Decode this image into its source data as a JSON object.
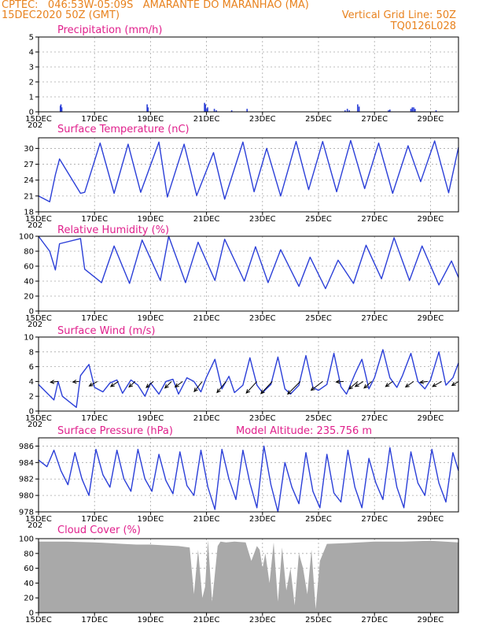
{
  "header": {
    "line1_left": "CPTEC:   046:53W-05:09S   AMARANTE DO MARANHAO (MA)",
    "line2_left": "15DEC2020 50Z (GMT)",
    "line2_right": "Vertical Grid Line: 50Z",
    "line3_right": "TQ0126L028"
  },
  "colors": {
    "header": "#e8821e",
    "title": "#e0208c",
    "series": "#2b3fd8",
    "cloud": "#a9a9a9",
    "wind_arrow": "#000000"
  },
  "x_axis": {
    "tick_labels": [
      "15DEC",
      "17DEC",
      "19DEC",
      "21DEC",
      "23DEC",
      "25DEC",
      "27DEC",
      "29DEC"
    ],
    "tick_days": [
      0,
      2,
      4,
      6,
      8,
      10,
      12,
      14
    ],
    "range_days": [
      0,
      15
    ],
    "sub_label": "202"
  },
  "chart_data": [
    {
      "type": "bar",
      "title": "Precipitation (mm/h)",
      "ylim": [
        0,
        5
      ],
      "yticks": [
        0,
        1,
        2,
        3,
        4,
        5
      ],
      "x_day": [
        0.78,
        0.8,
        0.83,
        3.88,
        3.91,
        5.93,
        5.96,
        6.01,
        6.04,
        6.28,
        6.35,
        6.9,
        7.45,
        10.95,
        11.03,
        11.1,
        11.4,
        11.45,
        12.5,
        12.55,
        13.3,
        13.35,
        13.4,
        13.45,
        14.2
      ],
      "values": [
        0.4,
        0.5,
        0.3,
        0.5,
        0.3,
        0.6,
        0.5,
        0.2,
        0.3,
        0.2,
        0.1,
        0.1,
        0.2,
        0.1,
        0.2,
        0.1,
        0.5,
        0.35,
        0.1,
        0.15,
        0.2,
        0.3,
        0.3,
        0.2,
        0.1
      ]
    },
    {
      "type": "line",
      "title": "Surface Temperature (nC)",
      "ylim": [
        18,
        32
      ],
      "yticks": [
        18,
        21,
        24,
        27,
        30
      ],
      "x_day": [
        0,
        0.4,
        0.6,
        0.75,
        1.5,
        1.65,
        2.2,
        2.7,
        3.2,
        3.65,
        4.3,
        4.6,
        5.2,
        5.65,
        6.25,
        6.65,
        7.3,
        7.7,
        8.15,
        8.65,
        9.2,
        9.65,
        10.15,
        10.65,
        11.15,
        11.65,
        12.15,
        12.65,
        13.2,
        13.65,
        14.15,
        14.65,
        15.0
      ],
      "values": [
        21.0,
        19.9,
        25.0,
        28.0,
        21.5,
        21.7,
        31.0,
        21.5,
        30.8,
        21.7,
        31.2,
        20.8,
        30.8,
        21.1,
        29.2,
        20.4,
        31.2,
        21.8,
        30.0,
        21.0,
        31.3,
        22.2,
        31.3,
        21.8,
        31.5,
        22.4,
        31.0,
        21.5,
        30.5,
        23.7,
        31.4,
        21.6,
        30.2
      ]
    },
    {
      "type": "line",
      "title": "Relative Humidity (%)",
      "ylim": [
        0,
        100
      ],
      "yticks": [
        0,
        20,
        40,
        60,
        80,
        100
      ],
      "x_day": [
        0,
        0.4,
        0.6,
        0.75,
        1.5,
        1.65,
        2.25,
        2.7,
        3.25,
        3.7,
        4.35,
        4.65,
        5.25,
        5.7,
        6.3,
        6.65,
        7.35,
        7.75,
        8.2,
        8.65,
        9.3,
        9.7,
        10.25,
        10.7,
        11.25,
        11.7,
        12.25,
        12.7,
        13.25,
        13.7,
        14.3,
        14.75,
        15.0
      ],
      "values": [
        100,
        80,
        55,
        90,
        97,
        56,
        38,
        87,
        37,
        95,
        41,
        100,
        38,
        92,
        41,
        96,
        40,
        86,
        38,
        82,
        33,
        72,
        30,
        68,
        37,
        88,
        43,
        98,
        41,
        87,
        35,
        67,
        45
      ]
    },
    {
      "type": "line",
      "title": "Surface Wind (m/s)",
      "ylim": [
        0,
        10
      ],
      "yticks": [
        0,
        2,
        4,
        6,
        8,
        10
      ],
      "x_day": [
        0,
        0.55,
        0.7,
        0.85,
        1.35,
        1.5,
        1.8,
        2.0,
        2.3,
        2.55,
        2.8,
        3.0,
        3.3,
        3.55,
        3.8,
        4.0,
        4.3,
        4.55,
        4.8,
        5.0,
        5.3,
        5.55,
        5.8,
        6.0,
        6.3,
        6.55,
        6.8,
        7.0,
        7.3,
        7.55,
        7.8,
        8.0,
        8.3,
        8.55,
        8.8,
        9.0,
        9.3,
        9.55,
        9.8,
        10.0,
        10.3,
        10.55,
        10.8,
        11.0,
        11.3,
        11.55,
        11.8,
        12.0,
        12.3,
        12.55,
        12.8,
        13.0,
        13.3,
        13.55,
        13.8,
        14.0,
        14.3,
        14.55,
        14.8,
        15.0
      ],
      "values": [
        3.6,
        1.5,
        4.0,
        2.0,
        0.5,
        4.8,
        6.3,
        3.2,
        2.6,
        3.8,
        4.2,
        2.4,
        4.2,
        3.5,
        2.0,
        3.8,
        2.3,
        4.0,
        4.3,
        2.3,
        4.5,
        4.0,
        2.6,
        4.6,
        7.0,
        3.0,
        4.7,
        2.5,
        3.5,
        7.2,
        3.5,
        2.5,
        3.6,
        7.3,
        3.0,
        2.3,
        3.5,
        7.5,
        3.2,
        2.8,
        3.6,
        7.8,
        3.3,
        2.3,
        5.0,
        7.0,
        3.0,
        4.5,
        8.3,
        4.5,
        3.2,
        4.8,
        7.8,
        4.0,
        3.0,
        4.2,
        8.0,
        3.5,
        4.5,
        6.5
      ]
    },
    {
      "type": "line",
      "title": "Surface Pressure (hPa)",
      "annotation": "Model Altitude: 235.756  m",
      "ylim": [
        978,
        987
      ],
      "yticks": [
        978,
        980,
        982,
        984,
        986
      ],
      "x_day": [
        0,
        0.3,
        0.55,
        0.8,
        1.05,
        1.3,
        1.55,
        1.8,
        2.05,
        2.3,
        2.55,
        2.8,
        3.05,
        3.3,
        3.55,
        3.8,
        4.05,
        4.3,
        4.55,
        4.8,
        5.05,
        5.3,
        5.55,
        5.8,
        6.05,
        6.3,
        6.55,
        6.8,
        7.05,
        7.3,
        7.55,
        7.8,
        8.05,
        8.3,
        8.55,
        8.8,
        9.05,
        9.3,
        9.55,
        9.8,
        10.05,
        10.3,
        10.55,
        10.8,
        11.05,
        11.3,
        11.55,
        11.8,
        12.05,
        12.3,
        12.55,
        12.8,
        13.05,
        13.3,
        13.55,
        13.8,
        14.05,
        14.3,
        14.55,
        14.8,
        15.0
      ],
      "values": [
        984.3,
        983.5,
        985.5,
        983.0,
        981.3,
        985.2,
        982.0,
        980.0,
        985.6,
        982.5,
        981.0,
        985.5,
        982.0,
        980.5,
        985.6,
        982.0,
        980.5,
        985.0,
        981.8,
        980.2,
        985.3,
        981.2,
        980.0,
        985.5,
        981.0,
        978.3,
        985.6,
        982.0,
        979.5,
        985.5,
        981.5,
        978.5,
        986.0,
        981.3,
        978.0,
        984.0,
        981.0,
        979.0,
        985.2,
        980.5,
        978.5,
        985.0,
        980.3,
        979.2,
        985.5,
        981.0,
        978.5,
        984.5,
        981.5,
        979.5,
        985.8,
        981.0,
        978.5,
        985.3,
        981.5,
        980.0,
        985.6,
        981.5,
        979.2,
        985.2,
        983.0
      ]
    },
    {
      "type": "area",
      "title": "Cloud Cover (%)",
      "ylim": [
        0,
        100
      ],
      "yticks": [
        0,
        20,
        40,
        60,
        80,
        100
      ],
      "x_day": [
        0,
        1.0,
        2.0,
        2.5,
        3.0,
        3.5,
        4.0,
        4.5,
        5.0,
        5.4,
        5.55,
        5.7,
        5.85,
        5.95,
        6.05,
        6.2,
        6.4,
        6.5,
        6.7,
        7.0,
        7.4,
        7.6,
        7.8,
        7.9,
        8.0,
        8.1,
        8.25,
        8.4,
        8.55,
        8.7,
        8.85,
        9.0,
        9.15,
        9.3,
        9.45,
        9.6,
        9.75,
        9.9,
        10.05,
        10.3,
        11.0,
        12.0,
        13.0,
        14.0,
        15.0
      ],
      "values": [
        96,
        96,
        95,
        94,
        93,
        92,
        92,
        91,
        90,
        88,
        25,
        85,
        20,
        35,
        98,
        15,
        90,
        96,
        95,
        96,
        95,
        70,
        90,
        85,
        60,
        80,
        40,
        95,
        15,
        88,
        30,
        60,
        10,
        80,
        60,
        25,
        85,
        5,
        70,
        93,
        94,
        96,
        96,
        97,
        95
      ]
    }
  ],
  "wind_vectors": {
    "x_day": [
      0.7,
      1.45,
      2.1,
      2.85,
      3.45,
      4.1,
      4.75,
      5.15,
      5.85,
      6.7,
      7.8,
      8.35,
      9.35,
      10.15,
      10.9,
      11.4,
      11.6,
      11.9,
      12.65,
      13.4,
      13.9,
      14.4,
      15.0
    ],
    "u": [
      -3.0,
      -2.5,
      -3.2,
      -3.0,
      -2.4,
      -2.8,
      -2.6,
      -3.0,
      -3.2,
      -3.6,
      -4.2,
      -4.5,
      -5.0,
      -4.6,
      -3.0,
      -3.4,
      -3.2,
      -3.0,
      -2.8,
      -3.2,
      -3.0,
      -3.6,
      -2.6
    ],
    "v": [
      -0.3,
      -0.2,
      -1.8,
      -2.0,
      -2.2,
      -2.4,
      -2.6,
      -2.2,
      -4.0,
      -4.4,
      -4.6,
      -4.8,
      -5.0,
      -3.5,
      -0.2,
      -3.0,
      -2.0,
      -2.6,
      -2.0,
      -2.2,
      -0.4,
      -2.0,
      -1.6
    ]
  }
}
